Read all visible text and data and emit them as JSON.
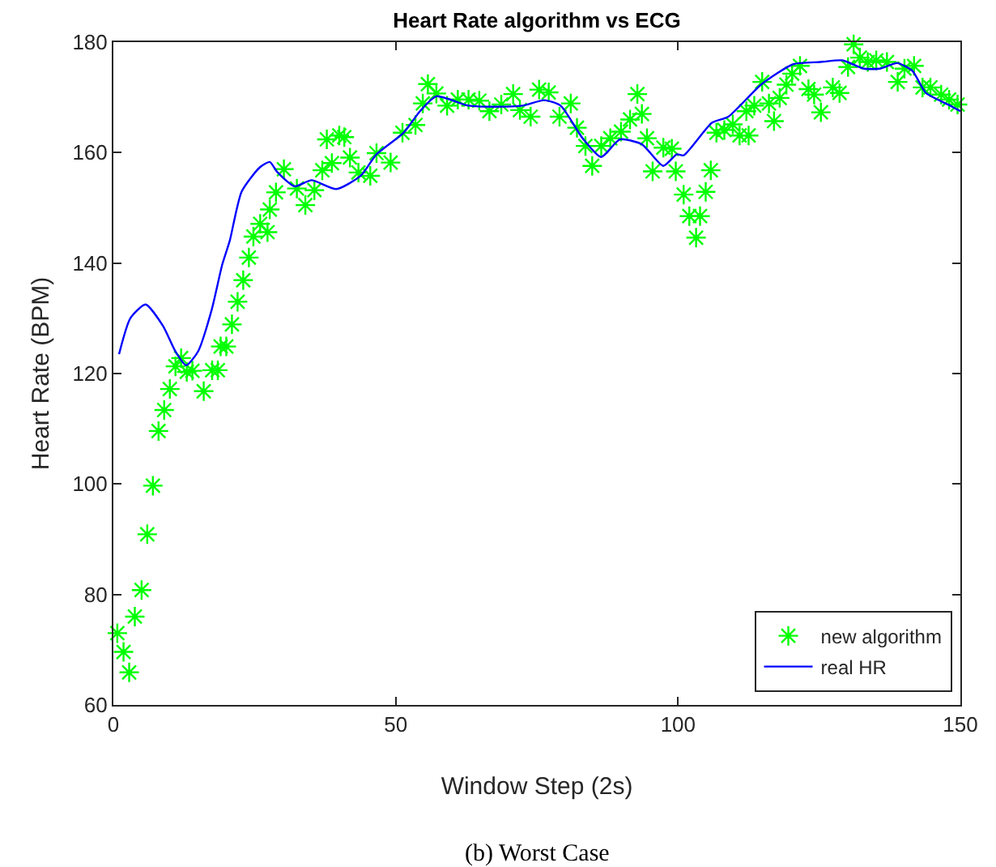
{
  "chart_data": {
    "type": "scatter",
    "title": "Heart Rate algorithm vs ECG",
    "xlabel": "Window Step (2s)",
    "ylabel": "Heart Rate (BPM)",
    "annotations": [
      "(b) Worst Case"
    ],
    "xlim": [
      0,
      150
    ],
    "xticks": [
      0,
      50,
      100,
      150
    ],
    "ylim": [
      60,
      180
    ],
    "yticks": [
      60,
      80,
      100,
      120,
      140,
      160,
      180
    ],
    "grid": false,
    "legend": "bottom right",
    "series": [
      {
        "name": "new algorithm",
        "marker": "cross",
        "color": "#00ff00",
        "x": [
          0.7,
          1.8,
          2.8,
          3.8,
          5,
          6,
          7,
          8,
          9,
          10,
          11,
          12,
          13,
          14,
          16,
          17.5,
          18.5,
          19,
          20,
          21,
          22,
          23,
          24,
          24.8,
          26,
          27.3,
          27.7,
          28.8,
          30.2,
          32.5,
          34,
          35.6,
          37,
          37.8,
          38.7,
          40,
          40.9,
          41.9,
          43.4,
          45.5,
          46.6,
          49.1,
          51.2,
          53.5,
          54.8,
          55.7,
          57.2,
          59.1,
          61,
          62.9,
          64.8,
          66.6,
          68.7,
          70.8,
          72,
          73.9,
          75.4,
          77.1,
          79,
          81,
          82.1,
          83.6,
          84.8,
          86.4,
          88,
          89.9,
          91.5,
          92.8,
          93.6,
          94.5,
          95.5,
          97.4,
          98.9,
          99.6,
          101,
          102,
          103.2,
          103.9,
          104.9,
          105.8,
          106.8,
          108.2,
          109.7,
          110.9,
          112.1,
          112.5,
          113.5,
          114.9,
          116.1,
          117,
          118,
          119.2,
          120.2,
          121.6,
          123.1,
          124.1,
          125.3,
          127.4,
          128.6,
          130.1,
          131.1,
          132.2,
          133.6,
          135.1,
          137,
          138.9,
          140.1,
          141.8,
          143.3,
          144.7,
          146.6,
          148,
          149.5
        ],
        "values": [
          73,
          69.6,
          65.9,
          76,
          80.8,
          90.9,
          99.7,
          109.6,
          113.4,
          117.2,
          121.3,
          122.8,
          120.3,
          120.5,
          116.8,
          120.6,
          120.6,
          124.9,
          124.9,
          128.9,
          133,
          136.9,
          141,
          144.8,
          147.1,
          145.6,
          149.7,
          152.8,
          157,
          153.5,
          150.5,
          153.2,
          156.8,
          162.4,
          158.1,
          163.1,
          162.8,
          159.1,
          156.4,
          155.8,
          159.9,
          158.2,
          163.6,
          165,
          168.9,
          172.4,
          170.7,
          168.5,
          169.6,
          169.6,
          169.4,
          167.5,
          168.7,
          170.6,
          167.7,
          166.5,
          171.4,
          170.9,
          166.5,
          168.9,
          164.5,
          161.2,
          157.6,
          161.2,
          162.6,
          163.8,
          166,
          170.6,
          167,
          162.6,
          156.6,
          160.9,
          160.7,
          156.6,
          152.4,
          148.5,
          144.6,
          148.5,
          152.9,
          156.8,
          163.6,
          164.1,
          165.1,
          163.1,
          167.5,
          163.1,
          168.5,
          172.8,
          168.9,
          165.7,
          169.9,
          172.3,
          174.3,
          175.7,
          171.5,
          170.5,
          167.3,
          171.8,
          170.8,
          175.5,
          179.6,
          177.2,
          176.4,
          176.7,
          176.4,
          172.8,
          175.2,
          175.7,
          171.8,
          171.8,
          170.5,
          169.6,
          168.7
        ]
      },
      {
        "name": "real HR",
        "type": "line",
        "marker": "none",
        "line_style": "solid",
        "color": "#0000ff",
        "x": [
          1,
          3,
          5.7,
          8.8,
          11,
          12.9,
          15,
          17.4,
          19.3,
          20.6,
          22.7,
          25.9,
          27.7,
          29,
          32.1,
          35.1,
          39.5,
          43.8,
          46.6,
          51.4,
          54.3,
          57.2,
          62.9,
          67.7,
          72.5,
          76.3,
          79.2,
          83.1,
          86.4,
          89.7,
          93.6,
          97.4,
          99.8,
          101,
          106,
          108.9,
          114.7,
          120.4,
          125.2,
          129.1,
          132.9,
          135.7,
          138.8,
          141.5,
          143.9,
          148.2,
          150
        ],
        "values": [
          123.5,
          130,
          132.5,
          128.6,
          124,
          121.5,
          124,
          131.5,
          139.8,
          144,
          152.9,
          157.3,
          158.3,
          156.5,
          153.9,
          155,
          153.4,
          155.8,
          159.7,
          163.6,
          167.5,
          170.2,
          168.5,
          168.3,
          168.5,
          169.5,
          168.5,
          162.6,
          159.2,
          162.4,
          161.5,
          157.6,
          159.7,
          159.5,
          165.4,
          166.5,
          172.3,
          176,
          176.4,
          176.7,
          175.2,
          175.2,
          176.2,
          174.8,
          170.8,
          168.5,
          167.5
        ]
      }
    ]
  }
}
